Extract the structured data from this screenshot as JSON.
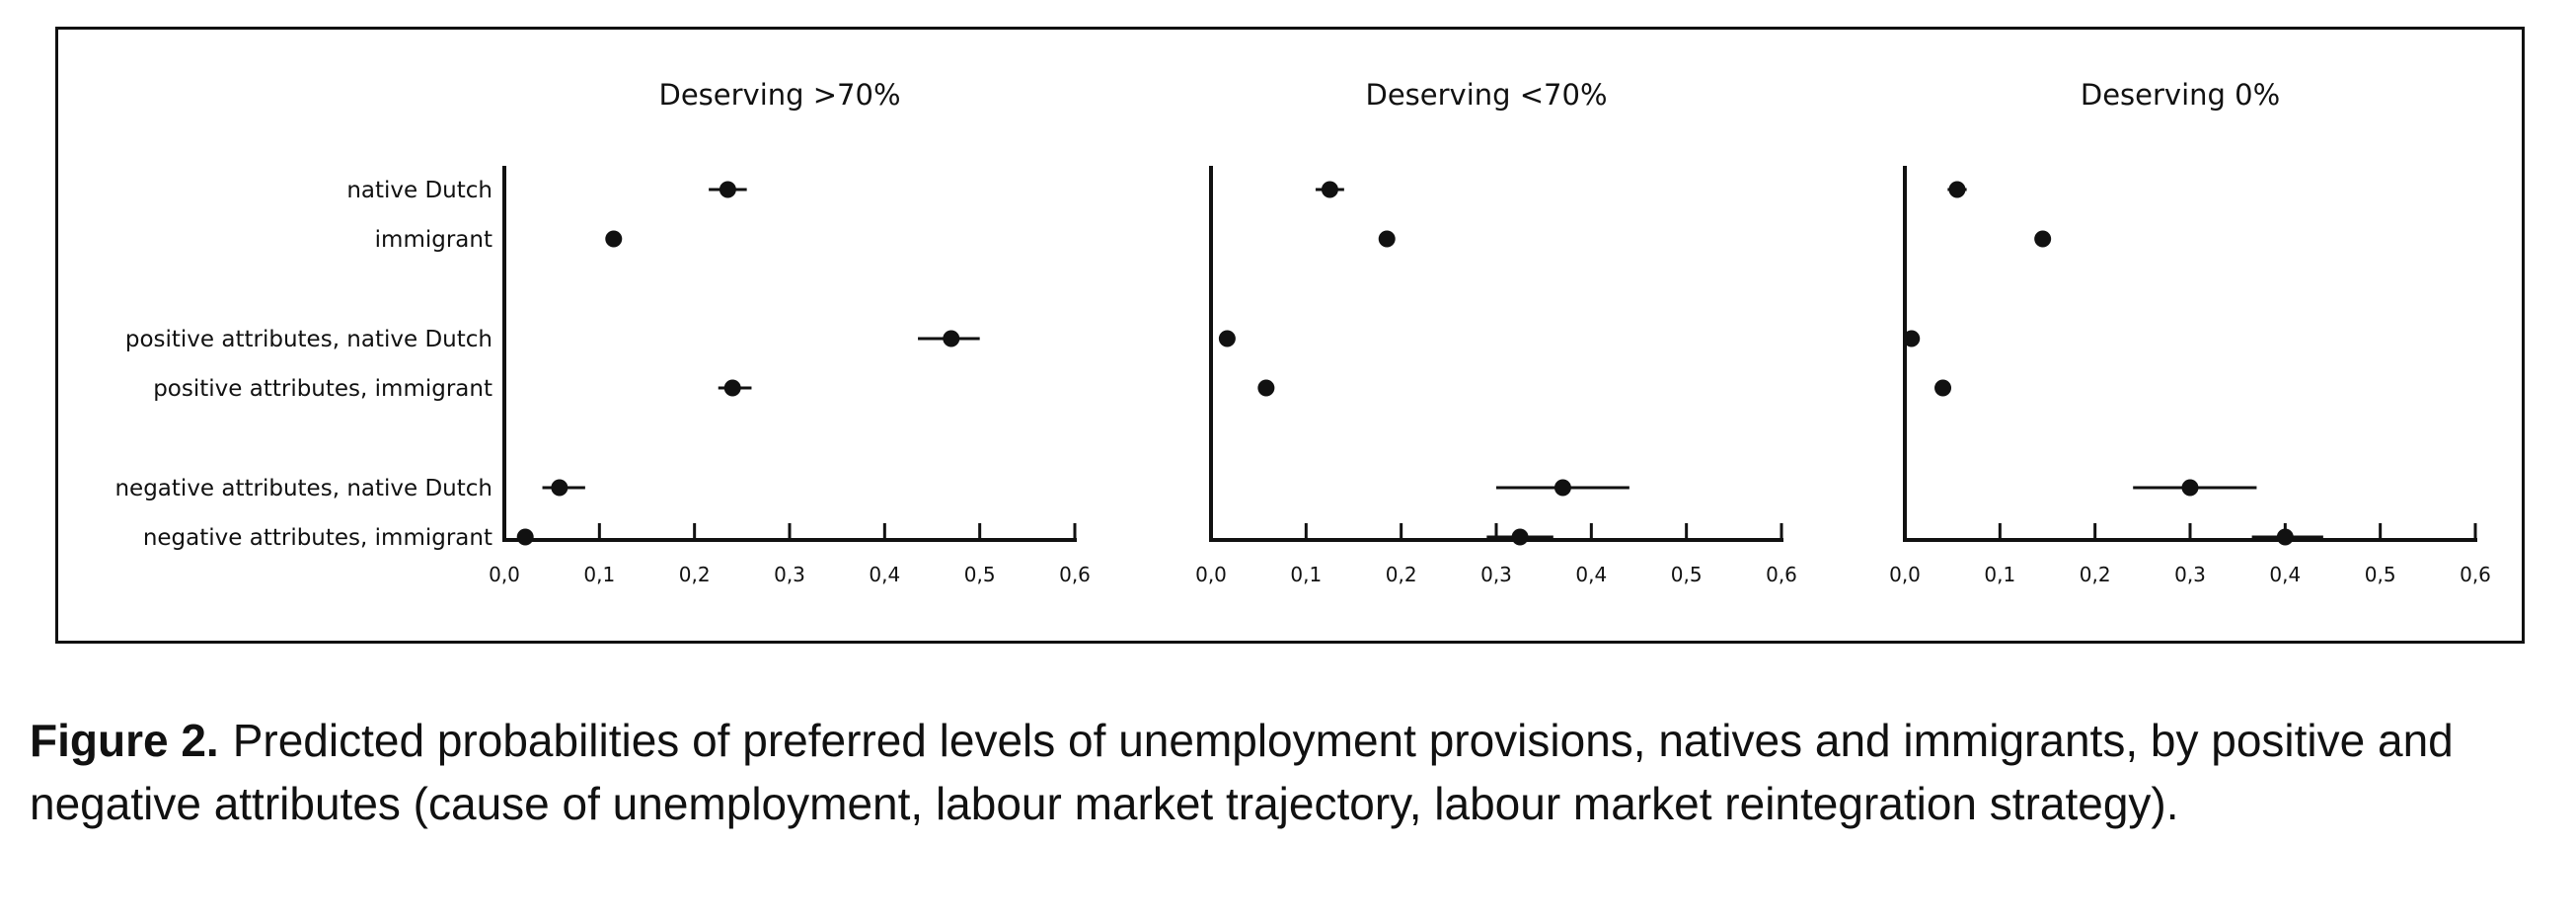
{
  "chart_data": {
    "type": "scatter",
    "subtype": "dot-and-whisker",
    "panels": [
      {
        "title": "Deserving >70%",
        "xlim": [
          0,
          0.6
        ],
        "xticks": [
          "0,0",
          "0,1",
          "0,2",
          "0,3",
          "0,4",
          "0,5",
          "0,6"
        ],
        "points": [
          {
            "label": "native Dutch",
            "value": 0.235,
            "lo": 0.215,
            "hi": 0.255
          },
          {
            "label": "immigrant",
            "value": 0.115,
            "lo": 0.115,
            "hi": 0.115
          },
          {
            "label": "positive attributes, native Dutch",
            "value": 0.47,
            "lo": 0.435,
            "hi": 0.5
          },
          {
            "label": "positive attributes, immigrant",
            "value": 0.24,
            "lo": 0.225,
            "hi": 0.26
          },
          {
            "label": "negative attributes, native Dutch",
            "value": 0.058,
            "lo": 0.04,
            "hi": 0.085
          },
          {
            "label": "negative attributes, immigrant",
            "value": 0.022,
            "lo": 0.02,
            "hi": 0.025
          }
        ]
      },
      {
        "title": "Deserving <70%",
        "xlim": [
          0,
          0.6
        ],
        "xticks": [
          "0,0",
          "0,1",
          "0,2",
          "0,3",
          "0,4",
          "0,5",
          "0,6"
        ],
        "points": [
          {
            "label": "native Dutch",
            "value": 0.125,
            "lo": 0.11,
            "hi": 0.14
          },
          {
            "label": "immigrant",
            "value": 0.185,
            "lo": 0.185,
            "hi": 0.185
          },
          {
            "label": "positive attributes, native Dutch",
            "value": 0.017,
            "lo": 0.017,
            "hi": 0.017
          },
          {
            "label": "positive attributes, immigrant",
            "value": 0.058,
            "lo": 0.058,
            "hi": 0.058
          },
          {
            "label": "negative attributes, native Dutch",
            "value": 0.37,
            "lo": 0.3,
            "hi": 0.44
          },
          {
            "label": "negative attributes, immigrant",
            "value": 0.325,
            "lo": 0.29,
            "hi": 0.36
          }
        ]
      },
      {
        "title": "Deserving 0%",
        "xlim": [
          0,
          0.6
        ],
        "xticks": [
          "0,0",
          "0,1",
          "0,2",
          "0,3",
          "0,4",
          "0,5",
          "0,6"
        ],
        "points": [
          {
            "label": "native Dutch",
            "value": 0.055,
            "lo": 0.045,
            "hi": 0.065
          },
          {
            "label": "immigrant",
            "value": 0.145,
            "lo": 0.145,
            "hi": 0.145
          },
          {
            "label": "positive attributes, native Dutch",
            "value": 0.007,
            "lo": 0.007,
            "hi": 0.007
          },
          {
            "label": "positive attributes, immigrant",
            "value": 0.04,
            "lo": 0.04,
            "hi": 0.04
          },
          {
            "label": "negative attributes, native Dutch",
            "value": 0.3,
            "lo": 0.24,
            "hi": 0.37
          },
          {
            "label": "negative attributes, immigrant",
            "value": 0.4,
            "lo": 0.365,
            "hi": 0.44
          }
        ]
      }
    ]
  },
  "caption": {
    "label": "Figure 2.",
    "text": "Predicted probabilities of preferred levels of unemployment provisions, natives and immigrants, by positive and negative attributes (cause of unemployment, labour market trajectory, labour market reintegration strategy)."
  }
}
